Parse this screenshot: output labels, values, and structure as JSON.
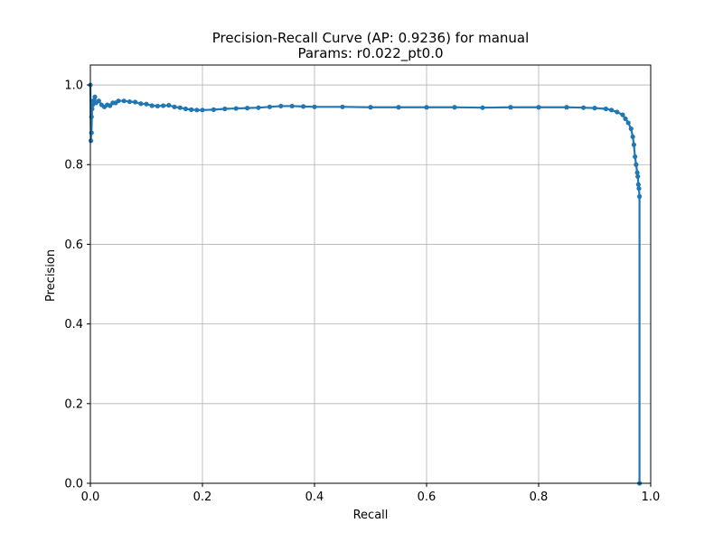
{
  "chart_data": {
    "type": "line",
    "title": "Precision-Recall Curve (AP: 0.9236) for manual",
    "subtitle": "Params: r0.022_pt0.0",
    "xlabel": "Recall",
    "ylabel": "Precision",
    "xlim": [
      0.0,
      1.0
    ],
    "ylim": [
      0.0,
      1.05
    ],
    "x_ticks": [
      "0.0",
      "0.2",
      "0.4",
      "0.6",
      "0.8",
      "1.0"
    ],
    "y_ticks": [
      "0.0",
      "0.2",
      "0.4",
      "0.6",
      "0.8",
      "1.0"
    ],
    "grid": true,
    "marker": "dot",
    "series_color": "#1f77b4",
    "series": [
      {
        "x": [
          0.0,
          0.001,
          0.002,
          0.002,
          0.003,
          0.004,
          0.005,
          0.006,
          0.008,
          0.01,
          0.015,
          0.02,
          0.025,
          0.03,
          0.035,
          0.04,
          0.045,
          0.05,
          0.06,
          0.07,
          0.08,
          0.09,
          0.1,
          0.11,
          0.12,
          0.13,
          0.14,
          0.15,
          0.16,
          0.17,
          0.18,
          0.19,
          0.2,
          0.22,
          0.24,
          0.26,
          0.28,
          0.3,
          0.32,
          0.34,
          0.36,
          0.38,
          0.4,
          0.45,
          0.5,
          0.55,
          0.6,
          0.65,
          0.7,
          0.75,
          0.8,
          0.85,
          0.88,
          0.9,
          0.92,
          0.93,
          0.94,
          0.95,
          0.955,
          0.96,
          0.965,
          0.968,
          0.97,
          0.972,
          0.974,
          0.976,
          0.977,
          0.978,
          0.979,
          0.98,
          0.98
        ],
        "y": [
          1.0,
          0.86,
          0.92,
          0.88,
          0.94,
          0.95,
          0.96,
          0.96,
          0.97,
          0.955,
          0.96,
          0.95,
          0.945,
          0.95,
          0.948,
          0.955,
          0.955,
          0.96,
          0.96,
          0.958,
          0.957,
          0.953,
          0.952,
          0.948,
          0.947,
          0.948,
          0.949,
          0.945,
          0.943,
          0.94,
          0.938,
          0.937,
          0.937,
          0.938,
          0.94,
          0.941,
          0.942,
          0.943,
          0.945,
          0.947,
          0.947,
          0.946,
          0.945,
          0.945,
          0.944,
          0.944,
          0.944,
          0.944,
          0.943,
          0.944,
          0.944,
          0.944,
          0.943,
          0.942,
          0.94,
          0.937,
          0.932,
          0.925,
          0.915,
          0.905,
          0.89,
          0.87,
          0.85,
          0.82,
          0.8,
          0.78,
          0.77,
          0.75,
          0.74,
          0.72,
          0.0
        ]
      }
    ]
  }
}
